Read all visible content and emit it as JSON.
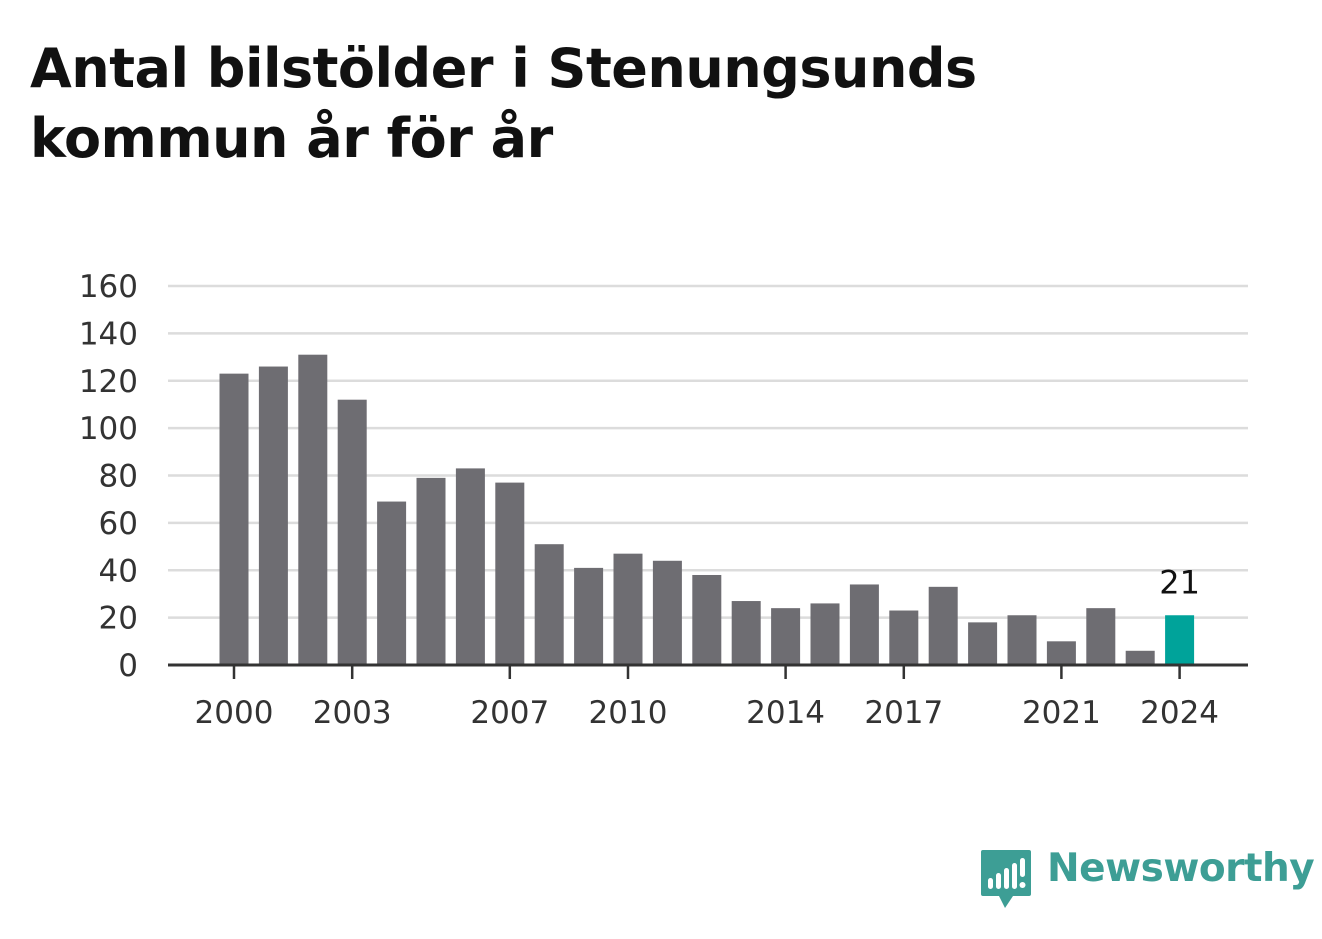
{
  "title": "Antal bilstölder i Stenungsunds kommun år för år",
  "brand": {
    "name": "Newsworthy",
    "icon": "newsworthy-logo-icon",
    "color": "#3d9e95"
  },
  "colors": {
    "bar": "#6e6d72",
    "highlight": "#00a39a",
    "grid": "#dcdcdc",
    "axis": "#333333"
  },
  "chart_data": {
    "type": "bar",
    "title": "Antal bilstölder i Stenungsunds kommun år för år",
    "xlabel": "",
    "ylabel": "",
    "categories": [
      2000,
      2001,
      2002,
      2003,
      2004,
      2005,
      2006,
      2007,
      2008,
      2009,
      2010,
      2011,
      2012,
      2013,
      2014,
      2015,
      2016,
      2017,
      2018,
      2019,
      2020,
      2021,
      2022,
      2023,
      2024
    ],
    "values": [
      123,
      126,
      131,
      112,
      69,
      79,
      83,
      77,
      51,
      41,
      47,
      44,
      38,
      27,
      24,
      26,
      34,
      23,
      33,
      18,
      21,
      10,
      24,
      6,
      21
    ],
    "x_tick_labels": [
      "2000",
      "2003",
      "2007",
      "2010",
      "2014",
      "2017",
      "2021",
      "2024"
    ],
    "y_ticks": [
      0,
      20,
      40,
      60,
      80,
      100,
      120,
      140,
      160
    ],
    "ylim": [
      0,
      160
    ],
    "grid": true,
    "highlight_category": 2024,
    "data_labels": [
      {
        "category": 2024,
        "text": "21"
      }
    ]
  }
}
